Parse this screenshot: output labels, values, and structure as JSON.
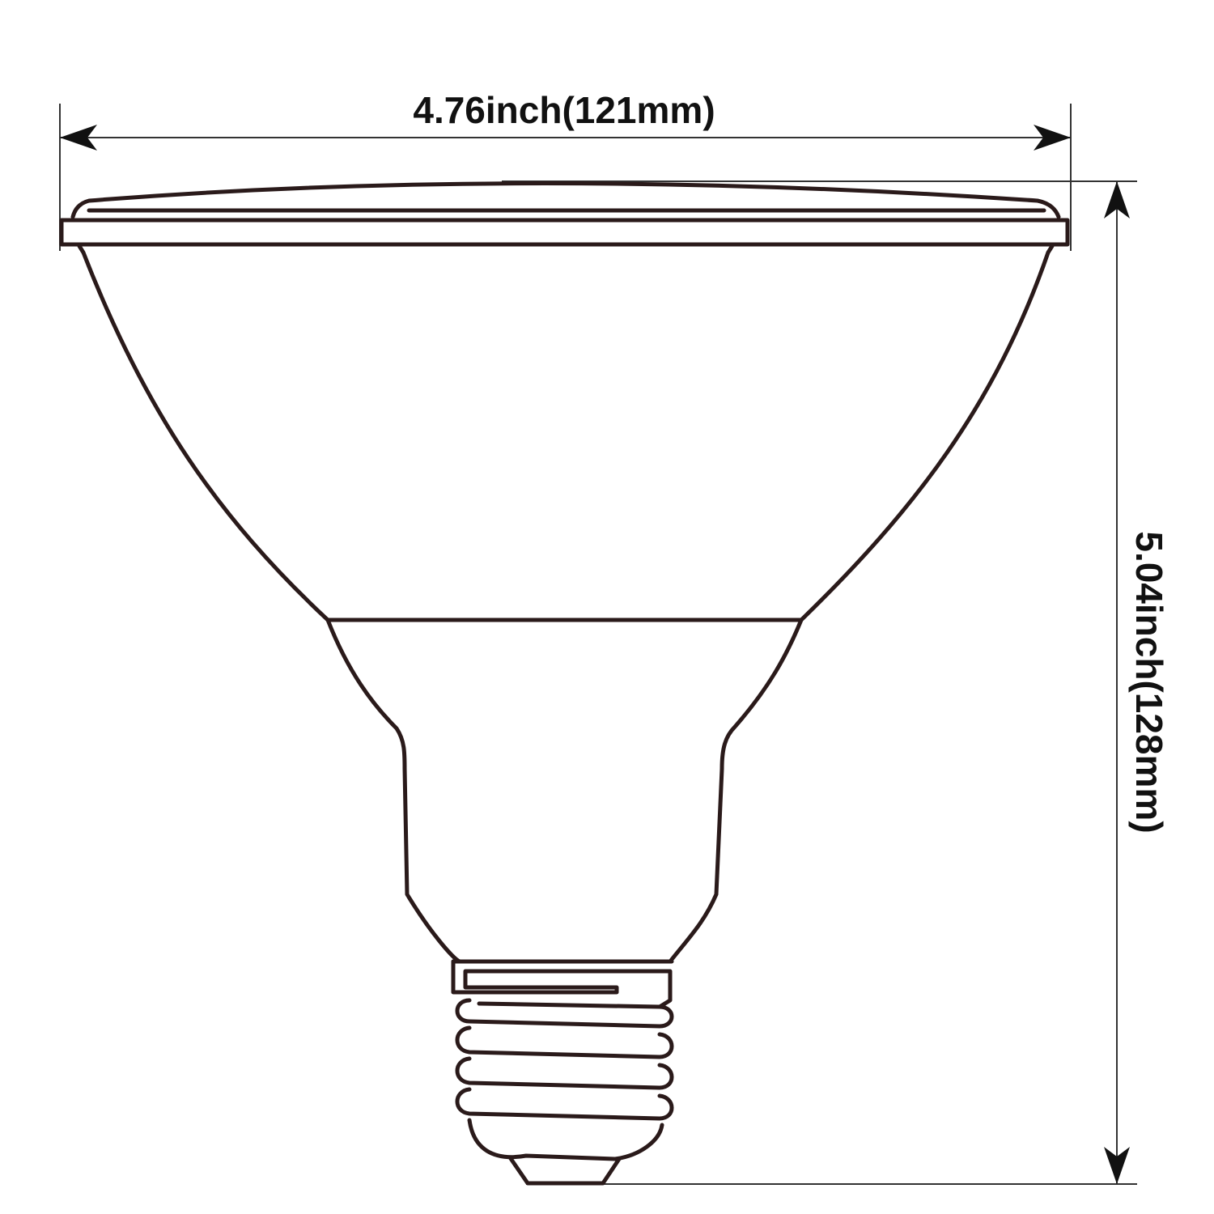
{
  "dimensions": {
    "width_label": "4.76inch(121mm)",
    "height_label": "5.04inch(128mm)"
  },
  "colors": {
    "outline": "#2a1a1a",
    "dimension_lines": "#333333",
    "background": "#ffffff"
  }
}
